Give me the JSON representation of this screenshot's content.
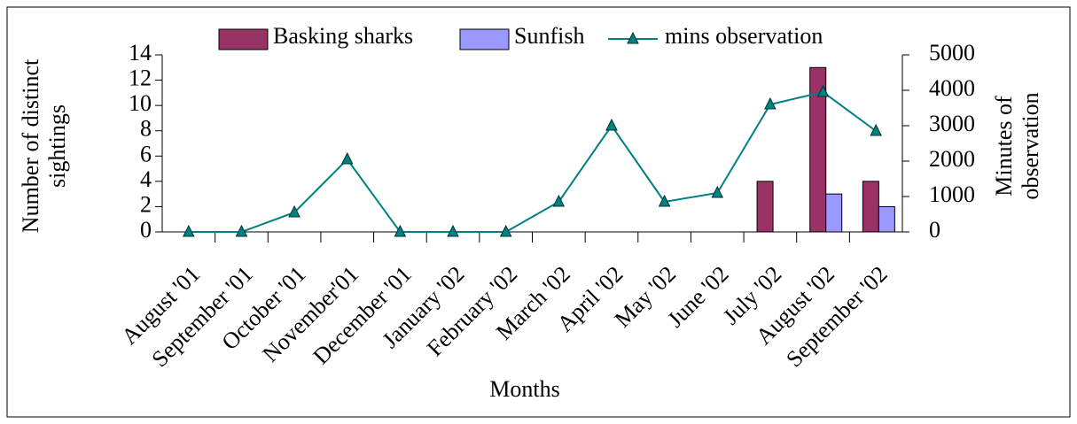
{
  "chart_data": {
    "type": "bar",
    "categories": [
      "August '01",
      "September '01",
      "October '01",
      "November'01",
      "December '01",
      "January '02",
      "February '02",
      "March '02",
      "April '02",
      "May '02",
      "June '02",
      "July '02",
      "August '02",
      "September '02"
    ],
    "series": [
      {
        "name": "Basking sharks",
        "color": "#993366",
        "values": [
          0,
          0,
          0,
          0,
          0,
          0,
          0,
          0,
          0,
          0,
          0,
          4,
          13,
          4
        ]
      },
      {
        "name": "Sunfish",
        "color": "#9999ff",
        "values": [
          0,
          0,
          0,
          0,
          0,
          0,
          0,
          0,
          0,
          0,
          0,
          0,
          3,
          2
        ]
      },
      {
        "name": "mins observation",
        "color": "#008080",
        "type": "line",
        "axis": "y2",
        "values": [
          0,
          0,
          550,
          2050,
          0,
          0,
          0,
          850,
          3000,
          850,
          1100,
          3600,
          3950,
          2850
        ]
      }
    ],
    "ylabel": [
      "Number of distinct",
      "sightings"
    ],
    "y2label": [
      "Minutes of",
      "observation"
    ],
    "xlabel": "Months",
    "ylim": [
      0,
      14
    ],
    "yticks": [
      0,
      2,
      4,
      6,
      8,
      10,
      12,
      14
    ],
    "y2lim": [
      0,
      5000
    ],
    "y2ticks": [
      0,
      1000,
      2000,
      3000,
      4000,
      5000
    ],
    "legend": "top"
  }
}
